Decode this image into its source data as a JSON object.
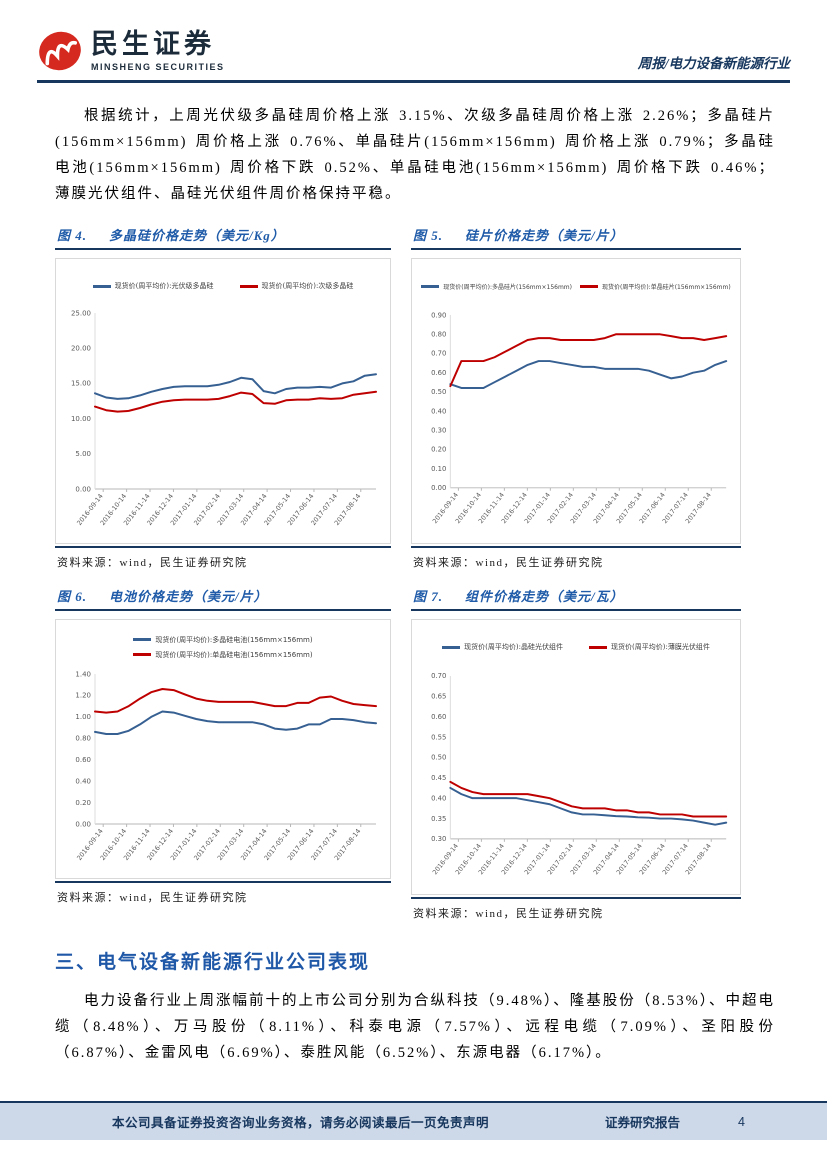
{
  "header": {
    "brand_cn": "民生证券",
    "brand_en": "MINSHENG SECURITIES",
    "report_type": "周报/电力设备新能源行业"
  },
  "paragraph1": "根据统计，上周光伏级多晶硅周价格上涨 3.15%、次级多晶硅周价格上涨 2.26%；多晶硅片(156mm×156mm) 周价格上涨 0.76%、单晶硅片(156mm×156mm) 周价格上涨 0.79%；多晶硅电池(156mm×156mm) 周价格下跌 0.52%、单晶硅电池(156mm×156mm) 周价格下跌 0.46%；薄膜光伏组件、晶硅光伏组件周价格保持平稳。",
  "section_heading": "三、电气设备新能源行业公司表现",
  "paragraph2": "电力设备行业上周涨幅前十的上市公司分别为合纵科技（9.48%）、隆基股份（8.53%）、中超电缆（8.48%）、万马股份（8.11%）、科泰电源（7.57%）、远程电缆（7.09%）、圣阳股份（6.87%）、金雷风电（6.69%）、泰胜风能（6.52%）、东源电器（6.17%）。",
  "footer": {
    "left": "本公司具备证券投资咨询业务资格，请务必阅读最后一页免责声明",
    "center": "证券研究报告",
    "page": "4"
  },
  "colors": {
    "accent_navy": "#17375E",
    "title_blue": "#1F5BA8",
    "line_blue": "#376092",
    "line_red": "#BE0000",
    "footer_band": "#CDD8E8"
  },
  "chart_data": [
    {
      "type": "line",
      "figure_label": "图 4.",
      "title": "多晶硅价格走势（美元/Kg）",
      "ylabel": "美元/Kg",
      "ylim": [
        0,
        25
      ],
      "ytick": 5,
      "grid": false,
      "legend_position": "top",
      "x_labels": [
        "2016-09-14",
        "2016-10-14",
        "2016-11-14",
        "2016-12-14",
        "2017-01-14",
        "2017-02-14",
        "2017-03-14",
        "2017-04-14",
        "2017-05-14",
        "2017-06-14",
        "2017-07-14",
        "2017-08-14"
      ],
      "series": [
        {
          "name": "现货价(周平均价):光伏级多晶硅",
          "color": "#376092",
          "values": [
            13.6,
            13.0,
            12.8,
            12.9,
            13.3,
            13.8,
            14.2,
            14.5,
            14.6,
            14.6,
            14.6,
            14.8,
            15.2,
            15.8,
            15.6,
            13.9,
            13.6,
            14.2,
            14.4,
            14.4,
            14.5,
            14.4,
            15.0,
            15.3,
            16.1,
            16.3
          ]
        },
        {
          "name": "现货价(周平均价):次级多晶硅",
          "color": "#BE0000",
          "values": [
            11.7,
            11.2,
            11.0,
            11.1,
            11.5,
            12.0,
            12.4,
            12.6,
            12.7,
            12.7,
            12.7,
            12.8,
            13.2,
            13.7,
            13.5,
            12.2,
            12.1,
            12.6,
            12.7,
            12.7,
            12.9,
            12.8,
            12.9,
            13.4,
            13.6,
            13.8
          ]
        }
      ],
      "source": "资料来源：wind，民生证券研究院"
    },
    {
      "type": "line",
      "figure_label": "图 5.",
      "title": "硅片价格走势（美元/片）",
      "ylabel": "美元/片",
      "ylim": [
        0,
        0.9
      ],
      "ytick": 0.1,
      "grid": false,
      "legend_position": "top",
      "legend_small": true,
      "x_labels": [
        "2016-09-14",
        "2016-10-14",
        "2016-11-14",
        "2016-12-14",
        "2017-01-14",
        "2017-02-14",
        "2017-03-14",
        "2017-04-14",
        "2017-05-14",
        "2017-06-14",
        "2017-07-14",
        "2017-08-14"
      ],
      "series": [
        {
          "name": "现货价(周平均价):多晶硅片(156mm×156mm)",
          "color": "#376092",
          "values": [
            0.54,
            0.52,
            0.52,
            0.52,
            0.55,
            0.58,
            0.61,
            0.64,
            0.66,
            0.66,
            0.65,
            0.64,
            0.63,
            0.63,
            0.62,
            0.62,
            0.62,
            0.62,
            0.61,
            0.59,
            0.57,
            0.58,
            0.6,
            0.61,
            0.64,
            0.66
          ]
        },
        {
          "name": "现货价(周平均价):单晶硅片(156mm×156mm)",
          "color": "#BE0000",
          "values": [
            0.53,
            0.66,
            0.66,
            0.66,
            0.68,
            0.71,
            0.74,
            0.77,
            0.78,
            0.78,
            0.77,
            0.77,
            0.77,
            0.77,
            0.78,
            0.8,
            0.8,
            0.8,
            0.8,
            0.8,
            0.79,
            0.78,
            0.78,
            0.77,
            0.78,
            0.79
          ]
        }
      ],
      "source": "资料来源：wind，民生证券研究院"
    },
    {
      "type": "line",
      "figure_label": "图 6.",
      "title": "电池价格走势（美元/片）",
      "ylabel": "美元/片",
      "ylim": [
        0,
        1.4
      ],
      "ytick": 0.2,
      "grid": false,
      "legend_position": "top",
      "legend_stacked": true,
      "x_labels": [
        "2016-09-14",
        "2016-10-14",
        "2016-11-14",
        "2016-12-14",
        "2017-01-14",
        "2017-02-14",
        "2017-03-14",
        "2017-04-14",
        "2017-05-14",
        "2017-06-14",
        "2017-07-14",
        "2017-08-14"
      ],
      "series": [
        {
          "name": "现货价(周平均价):多晶硅电池(156mm×156mm)",
          "color": "#376092",
          "values": [
            0.86,
            0.84,
            0.84,
            0.87,
            0.93,
            1.0,
            1.05,
            1.04,
            1.01,
            0.98,
            0.96,
            0.95,
            0.95,
            0.95,
            0.95,
            0.93,
            0.89,
            0.88,
            0.89,
            0.93,
            0.93,
            0.98,
            0.98,
            0.97,
            0.95,
            0.94
          ]
        },
        {
          "name": "现货价(周平均价):单晶硅电池(156mm×156mm)",
          "color": "#BE0000",
          "values": [
            1.05,
            1.04,
            1.05,
            1.1,
            1.17,
            1.23,
            1.26,
            1.25,
            1.21,
            1.17,
            1.15,
            1.14,
            1.14,
            1.14,
            1.14,
            1.12,
            1.1,
            1.1,
            1.13,
            1.13,
            1.18,
            1.19,
            1.15,
            1.12,
            1.11,
            1.1
          ]
        }
      ],
      "source": "资料来源：wind，民生证券研究院"
    },
    {
      "type": "line",
      "figure_label": "图 7.",
      "title": "组件价格走势（美元/瓦）",
      "ylabel": "美元/瓦",
      "ylim": [
        0.3,
        0.7
      ],
      "ytick": 0.05,
      "grid": false,
      "legend_position": "top",
      "x_labels": [
        "2016-09-14",
        "2016-10-14",
        "2016-11-14",
        "2016-12-14",
        "2017-01-14",
        "2017-02-14",
        "2017-03-14",
        "2017-04-14",
        "2017-05-14",
        "2017-06-14",
        "2017-07-14",
        "2017-08-14"
      ],
      "series": [
        {
          "name": "现货价(周平均价):晶硅光伏组件",
          "color": "#376092",
          "values": [
            0.425,
            0.41,
            0.4,
            0.4,
            0.4,
            0.4,
            0.4,
            0.395,
            0.39,
            0.385,
            0.375,
            0.365,
            0.36,
            0.36,
            0.358,
            0.356,
            0.355,
            0.353,
            0.352,
            0.35,
            0.35,
            0.348,
            0.345,
            0.34,
            0.335,
            0.34
          ]
        },
        {
          "name": "现货价(周平均价):薄膜光伏组件",
          "color": "#BE0000",
          "values": [
            0.44,
            0.425,
            0.415,
            0.41,
            0.41,
            0.41,
            0.41,
            0.41,
            0.405,
            0.4,
            0.39,
            0.38,
            0.375,
            0.375,
            0.375,
            0.37,
            0.37,
            0.365,
            0.365,
            0.36,
            0.36,
            0.36,
            0.355,
            0.355,
            0.355,
            0.355
          ]
        }
      ],
      "source": "资料来源：wind，民生证券研究院"
    }
  ]
}
